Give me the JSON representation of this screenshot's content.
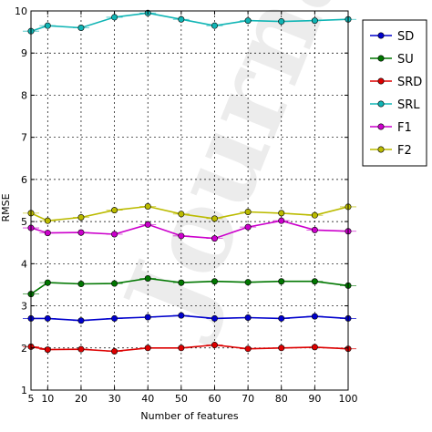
{
  "chart_data": {
    "type": "line",
    "x": [
      5,
      10,
      20,
      30,
      40,
      50,
      60,
      70,
      80,
      90,
      100
    ],
    "xticks": [
      5,
      10,
      20,
      30,
      40,
      50,
      60,
      70,
      80,
      90,
      100
    ],
    "yticks": [
      1,
      2,
      3,
      4,
      5,
      6,
      7,
      8,
      9,
      10
    ],
    "xlim": [
      5,
      100
    ],
    "ylim": [
      1,
      10
    ],
    "xlabel": "Number of features",
    "ylabel": "RMSE",
    "grid": true,
    "legend_position": "top-right-outside",
    "watermark": "Journal",
    "series": [
      {
        "name": "SD",
        "color": "#0000cc",
        "values": [
          2.7,
          2.7,
          2.65,
          2.7,
          2.73,
          2.77,
          2.7,
          2.72,
          2.7,
          2.75,
          2.7
        ]
      },
      {
        "name": "SU",
        "color": "#007700",
        "values": [
          3.28,
          3.55,
          3.52,
          3.53,
          3.65,
          3.55,
          3.58,
          3.56,
          3.58,
          3.58,
          3.48
        ]
      },
      {
        "name": "SRD",
        "color": "#dd0000",
        "values": [
          2.03,
          1.96,
          1.97,
          1.92,
          2.0,
          2.0,
          2.07,
          1.98,
          2.0,
          2.02,
          1.98
        ]
      },
      {
        "name": "SRL",
        "color": "#11b5b5",
        "values": [
          9.52,
          9.65,
          9.6,
          9.85,
          9.95,
          9.8,
          9.65,
          9.77,
          9.75,
          9.77,
          9.8
        ]
      },
      {
        "name": "F1",
        "color": "#cc00cc",
        "values": [
          4.85,
          4.73,
          4.74,
          4.7,
          4.93,
          4.66,
          4.6,
          4.87,
          5.02,
          4.8,
          4.77
        ]
      },
      {
        "name": "F2",
        "color": "#bbbb00",
        "values": [
          5.2,
          5.02,
          5.1,
          5.27,
          5.36,
          5.18,
          5.07,
          5.23,
          5.2,
          5.15,
          5.35
        ]
      }
    ]
  }
}
